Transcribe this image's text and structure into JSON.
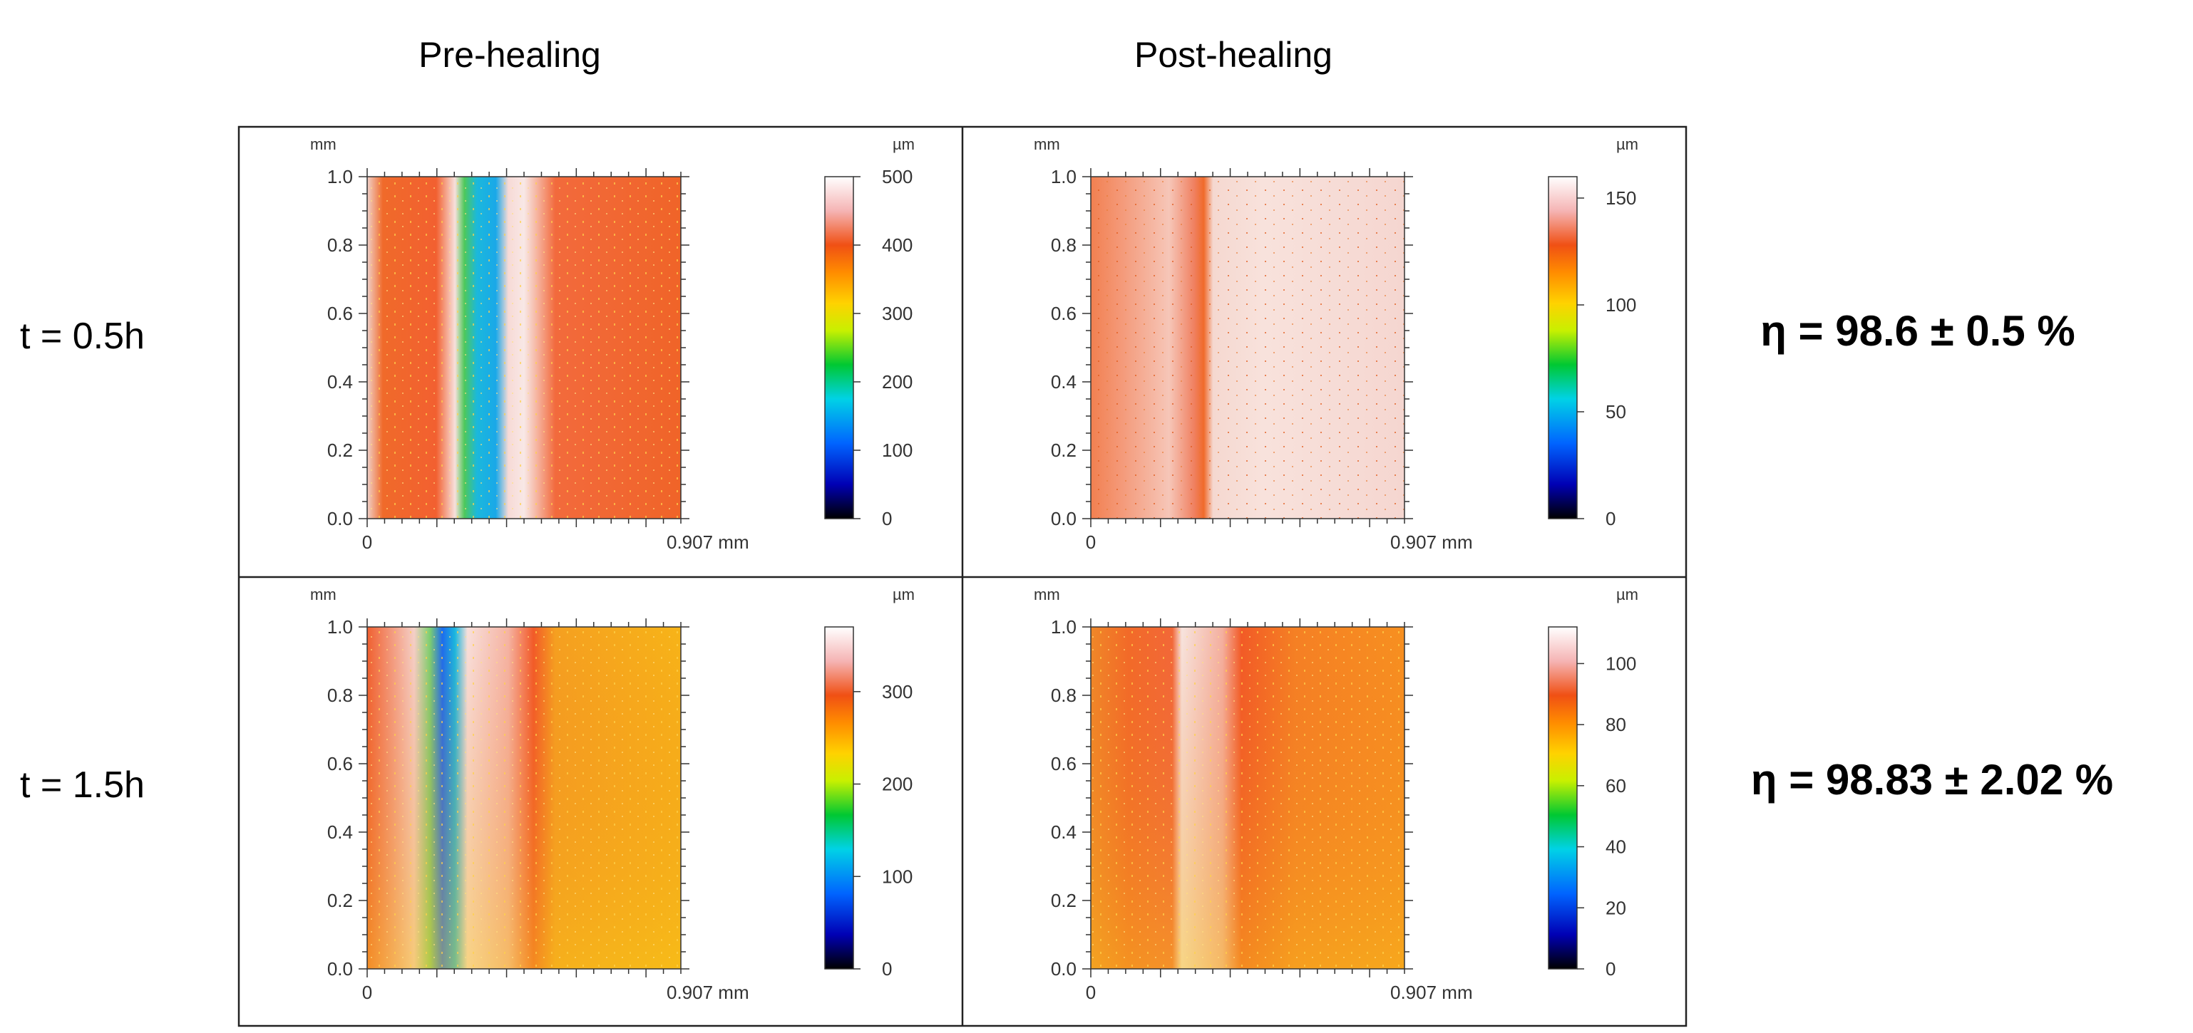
{
  "column_titles": {
    "pre": "Pre-healing",
    "post": "Post-healing"
  },
  "row_labels": [
    "t = 0.5h",
    "t = 1.5h"
  ],
  "efficiencies": [
    "η = 98.6 ± 0.5 %",
    "η = 98.83 ± 2.02 %"
  ],
  "chart_data": [
    {
      "type": "heatmap",
      "title": "Pre-healing, t = 0.5h",
      "axis_unit": "mm",
      "x_ticks": [
        "0",
        "0.907 mm"
      ],
      "y_ticks": [
        "0.0",
        "0.2",
        "0.4",
        "0.6",
        "0.8",
        "1.0"
      ],
      "xlim": [
        0,
        0.907
      ],
      "ylim": [
        0,
        1.0
      ],
      "colorbar_unit": "µm",
      "colorbar_range": [
        0,
        500
      ],
      "colorbar_ticks": [
        "0",
        "100",
        "200",
        "300",
        "400",
        "500"
      ],
      "description_profile": "deep crack channel near x≈0.37 mm"
    },
    {
      "type": "heatmap",
      "title": "Post-healing, t = 0.5h",
      "axis_unit": "mm",
      "x_ticks": [
        "0",
        "0.907 mm"
      ],
      "y_ticks": [
        "0.0",
        "0.2",
        "0.4",
        "0.6",
        "0.8",
        "1.0"
      ],
      "xlim": [
        0,
        0.907
      ],
      "ylim": [
        0,
        1.0
      ],
      "colorbar_unit": "µm",
      "colorbar_range": [
        0,
        160
      ],
      "colorbar_ticks": [
        "0",
        "50",
        "100",
        "150"
      ],
      "description_profile": "healed line near x≈0.34 mm"
    },
    {
      "type": "heatmap",
      "title": "Pre-healing, t = 1.5h",
      "axis_unit": "mm",
      "x_ticks": [
        "0",
        "0.907 mm"
      ],
      "y_ticks": [
        "0.0",
        "0.2",
        "0.4",
        "0.6",
        "0.8",
        "1.0"
      ],
      "xlim": [
        0,
        0.907
      ],
      "ylim": [
        0,
        1.0
      ],
      "colorbar_unit": "µm",
      "colorbar_range": [
        0,
        370
      ],
      "colorbar_ticks": [
        "0",
        "100",
        "200",
        "300"
      ],
      "description_profile": "deep crack channel near x≈0.25 mm"
    },
    {
      "type": "heatmap",
      "title": "Post-healing, t = 1.5h",
      "axis_unit": "mm",
      "x_ticks": [
        "0",
        "0.907 mm"
      ],
      "y_ticks": [
        "0.0",
        "0.2",
        "0.4",
        "0.6",
        "0.8",
        "1.0"
      ],
      "xlim": [
        0,
        0.907
      ],
      "ylim": [
        0,
        1.0
      ],
      "colorbar_unit": "µm",
      "colorbar_range": [
        0,
        112
      ],
      "colorbar_ticks": [
        "0",
        "20",
        "40",
        "60",
        "80",
        "100"
      ],
      "description_profile": "healed line near x≈0.27 mm"
    }
  ]
}
